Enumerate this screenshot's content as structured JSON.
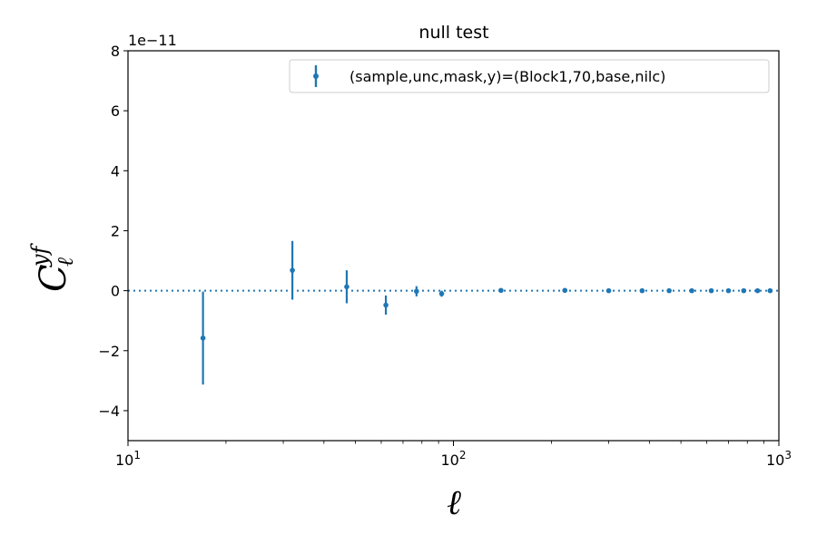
{
  "chart_data": {
    "type": "scatter",
    "title": "null test",
    "xlabel": "ℓ",
    "ylabel_main": "C",
    "ylabel_sup": "yf",
    "ylabel_sub": "ℓ",
    "xscale": "log",
    "xlim": [
      10,
      1000
    ],
    "ylim": [
      -5,
      8
    ],
    "y_multiplier_label": "1e−11",
    "x_ticks": [
      {
        "value": 10,
        "base": "10",
        "exp": "1"
      },
      {
        "value": 100,
        "base": "10",
        "exp": "2"
      },
      {
        "value": 1000,
        "base": "10",
        "exp": "3"
      }
    ],
    "y_ticks": [
      {
        "value": -4,
        "label": "−4"
      },
      {
        "value": -2,
        "label": "−2"
      },
      {
        "value": 0,
        "label": "0"
      },
      {
        "value": 2,
        "label": "2"
      },
      {
        "value": 4,
        "label": "4"
      },
      {
        "value": 6,
        "label": "6"
      },
      {
        "value": 8,
        "label": "8"
      }
    ],
    "reference_line": {
      "y": 0,
      "style": "dotted"
    },
    "legend_position": "top-right",
    "series": [
      {
        "name": "(sample,unc,mask,y)=(Block1,70,base,nilc)",
        "color": "#1f77b4",
        "x": [
          17,
          32,
          47,
          62,
          77,
          92,
          140,
          220,
          300,
          380,
          460,
          540,
          620,
          700,
          780,
          860,
          940
        ],
        "y": [
          -1.58,
          0.68,
          0.13,
          -0.48,
          -0.02,
          -0.1,
          0.01,
          0.01,
          0.0,
          0.0,
          0.0,
          0.0,
          0.0,
          0.0,
          0.0,
          0.0,
          0.0
        ],
        "yerr": [
          1.55,
          0.98,
          0.55,
          0.32,
          0.17,
          0.1,
          0.05,
          0.04,
          0.03,
          0.03,
          0.03,
          0.03,
          0.03,
          0.03,
          0.03,
          0.03,
          0.03
        ]
      }
    ]
  }
}
